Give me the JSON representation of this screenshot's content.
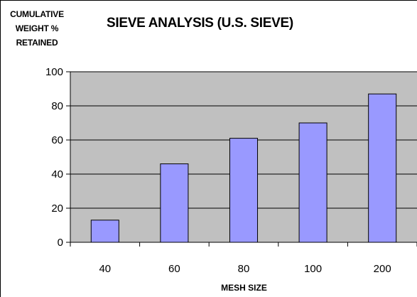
{
  "chart_data": {
    "type": "bar",
    "title": "SIEVE ANALYSIS (U.S. SIEVE)",
    "ylabel_lines": [
      "CUMULATIVE",
      "WEIGHT %",
      "RETAINED"
    ],
    "xlabel": "MESH SIZE",
    "categories": [
      "40",
      "60",
      "80",
      "100",
      "200"
    ],
    "values": [
      13,
      46,
      61,
      70,
      87
    ],
    "ylim": [
      0,
      100
    ],
    "yticks": [
      0,
      20,
      40,
      60,
      80,
      100
    ],
    "grid": true,
    "legend": "none",
    "colors": {
      "bar": "#9999ff",
      "plot_background": "#c0c0c0",
      "gridline": "#000000"
    }
  }
}
